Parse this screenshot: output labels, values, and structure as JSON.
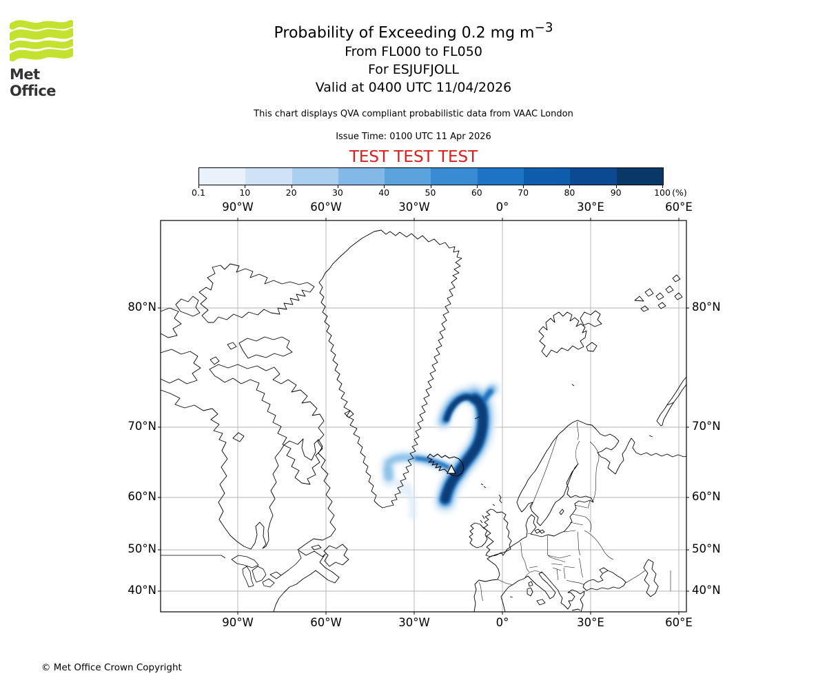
{
  "header": {
    "logo_text": "Met Office",
    "logo_green": "#c3e12f",
    "title": "Probability of Exceeding 0.2 mg m",
    "title_sup": "−3",
    "subtitle1": "From FL000 to FL050",
    "subtitle2": "For ESJUFJOLL",
    "subtitle3": "Valid at 0400 UTC 11/04/2026",
    "note": "This chart displays QVA compliant probabilistic data from VAAC London",
    "issue_time": "Issue Time: 0100 UTC 11 Apr 2026",
    "test_banner": "TEST TEST TEST",
    "test_color": "#dd1c1c"
  },
  "colorbar": {
    "tick_labels": [
      "0.1",
      "10",
      "20",
      "30",
      "40",
      "50",
      "60",
      "70",
      "80",
      "90",
      "100"
    ],
    "unit": "(%)",
    "colors": [
      "#e9f2fb",
      "#d0e3f6",
      "#abcfee",
      "#83b9e6",
      "#5ba3dd",
      "#3a8cd2",
      "#1d74c4",
      "#0e5cab",
      "#0b4992",
      "#0a3866"
    ]
  },
  "map": {
    "x_labels": [
      "90°W",
      "60°W",
      "30°W",
      "0°",
      "30°E",
      "60°E"
    ],
    "y_labels": [
      "80°N",
      "70°N",
      "60°N",
      "50°N",
      "40°N"
    ]
  },
  "plume": {
    "colors": {
      "lightest": "#dcebf8",
      "light": "#8fc3ea",
      "mid": "#1f6fbe",
      "dark": "#0a3e78"
    }
  },
  "footer": {
    "copyright": "© Met Office Crown Copyright"
  },
  "chart_data": {
    "type": "heatmap",
    "title": "Probability of Exceeding 0.2 mg m⁻³",
    "layer": "FL000 to FL050",
    "volcano": {
      "name": "ESJUFJOLL",
      "marker": "white triangle",
      "approx_location": "southeast Iceland"
    },
    "valid_time": "0400 UTC 11/04/2026",
    "issue_time": "0100 UTC 11 Apr 2026",
    "source": "VAAC London",
    "legend_levels_percent": [
      0.1,
      10,
      20,
      30,
      40,
      50,
      60,
      70,
      80,
      90,
      100
    ],
    "legend_unit": "(%)",
    "x_axis": {
      "label": "longitude",
      "ticks": [
        "90°W",
        "60°W",
        "30°W",
        "0°",
        "30°E",
        "60°E"
      ]
    },
    "y_axis": {
      "label": "latitude",
      "ticks": [
        "80°N",
        "70°N",
        "60°N",
        "50°N",
        "40°N"
      ]
    },
    "grid": true,
    "plume_description": "Hook/comma-shaped ash plume centred over and northeast of Iceland (roughly 25–10°W, 58–74°N); highest probabilities 90–100% along the arc from south of Iceland curving northeast then hooking back west; lighter 10–40% arm extends west from Iceland toward the Greenland coast and faint patches trail to the southwest."
  }
}
